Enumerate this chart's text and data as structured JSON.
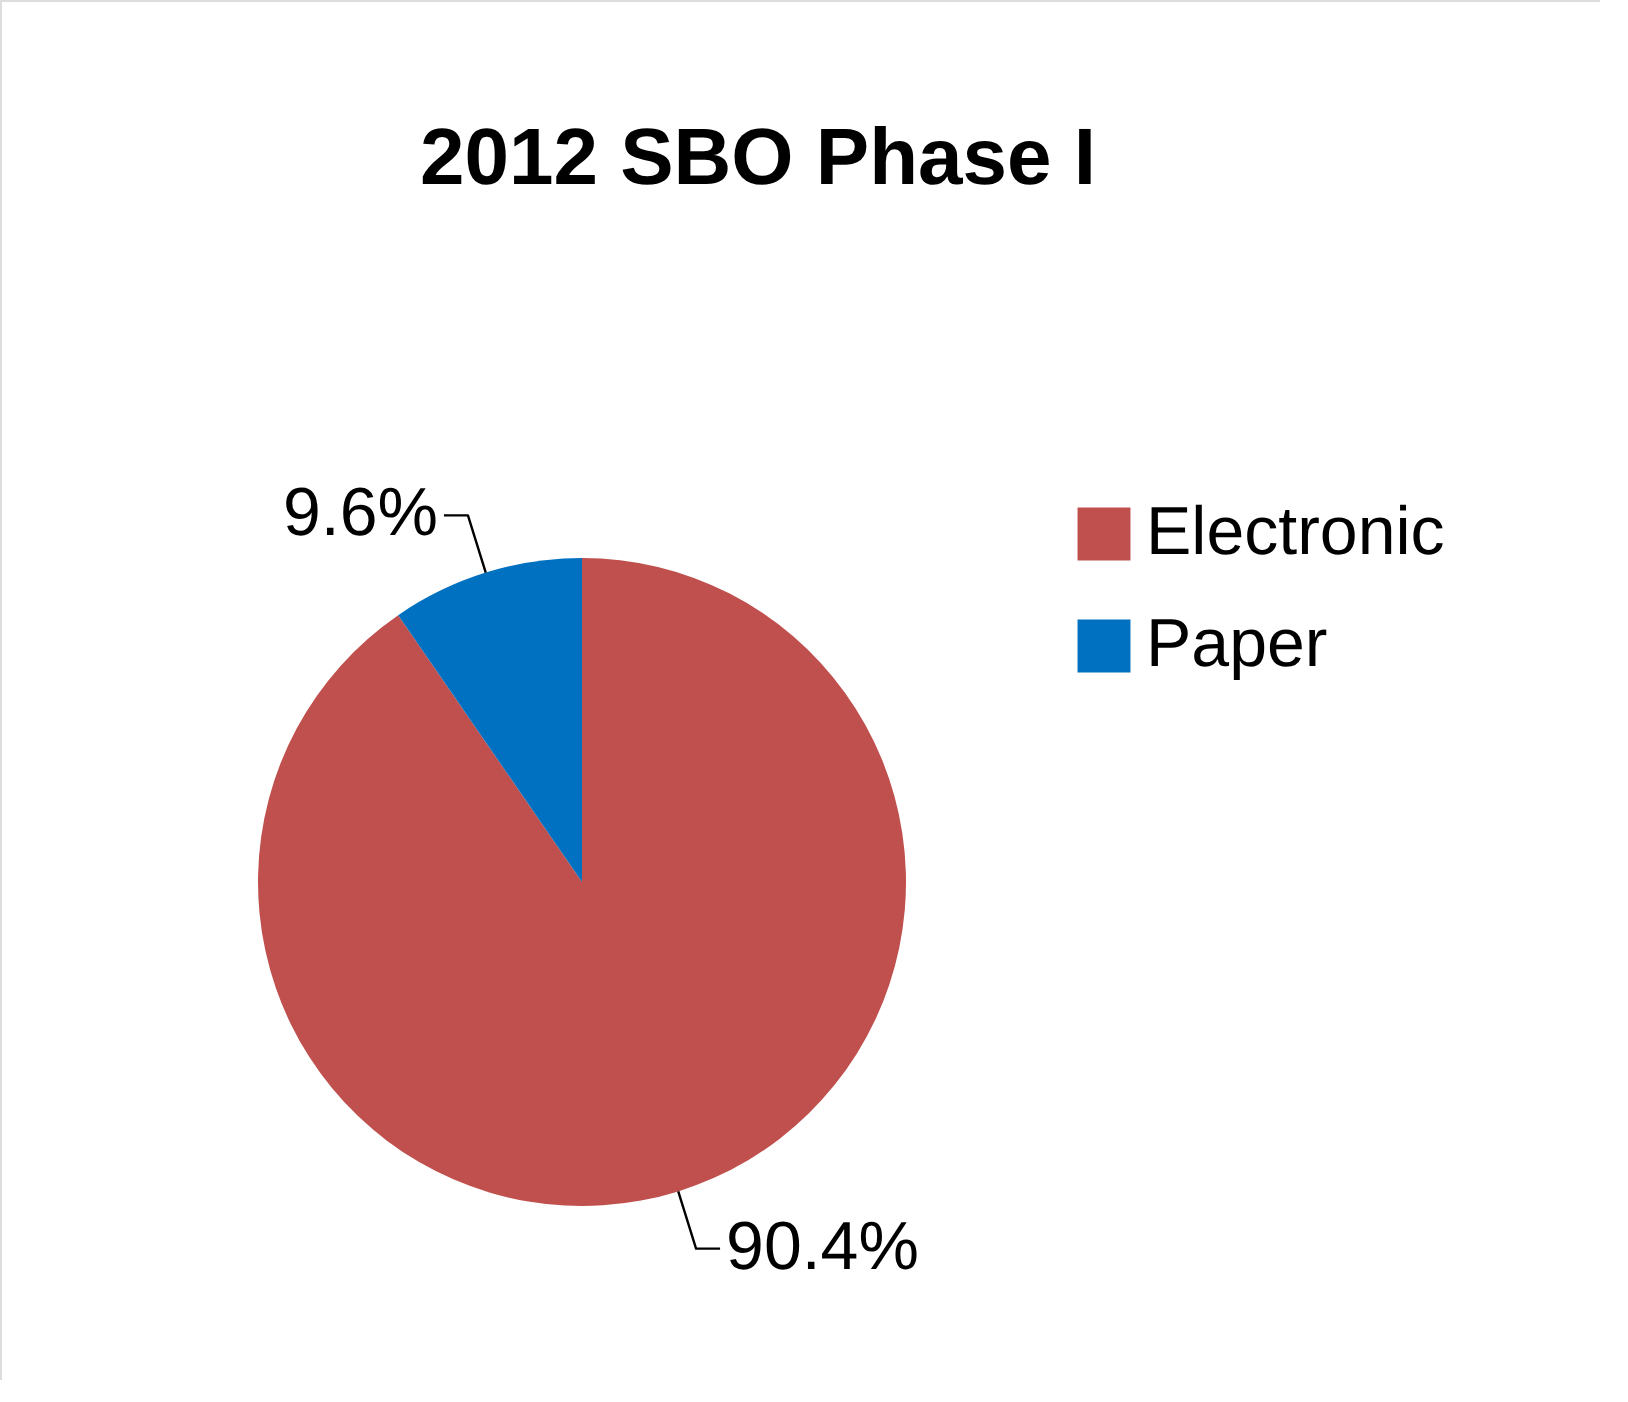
{
  "chart_data": {
    "type": "pie",
    "title": "2012 SBO Phase I",
    "categories": [
      "Electronic",
      "Paper"
    ],
    "values": [
      90.4,
      9.6
    ],
    "colors": [
      "#c0504d",
      "#0070c0"
    ],
    "value_labels": [
      "90.4%",
      "9.6%"
    ],
    "legend": "right"
  }
}
